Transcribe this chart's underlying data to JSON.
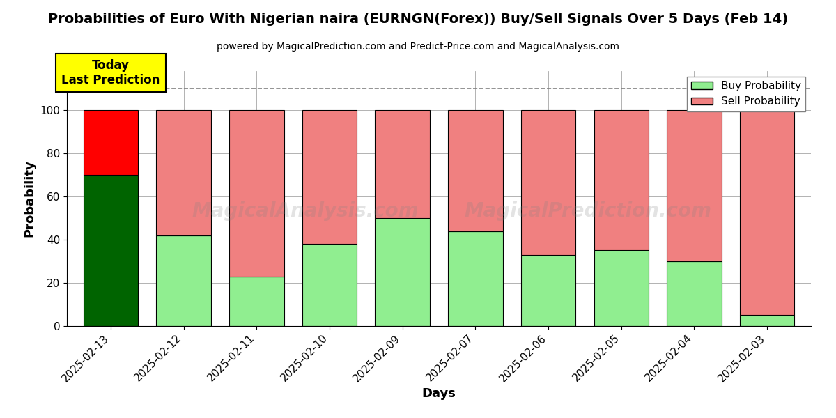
{
  "title": "Probabilities of Euro With Nigerian naira (EURNGN(Forex)) Buy/Sell Signals Over 5 Days (Feb 14)",
  "subtitle": "powered by MagicalPrediction.com and Predict-Price.com and MagicalAnalysis.com",
  "xlabel": "Days",
  "ylabel": "Probability",
  "days": [
    "2025-02-13",
    "2025-02-12",
    "2025-02-11",
    "2025-02-10",
    "2025-02-09",
    "2025-02-07",
    "2025-02-06",
    "2025-02-05",
    "2025-02-04",
    "2025-02-03"
  ],
  "buy_values": [
    70,
    42,
    23,
    38,
    50,
    44,
    33,
    35,
    30,
    5
  ],
  "sell_values": [
    30,
    58,
    77,
    62,
    50,
    56,
    67,
    65,
    70,
    95
  ],
  "today_buy_color": "#006400",
  "today_sell_color": "#FF0000",
  "buy_color": "#90EE90",
  "sell_color": "#F08080",
  "today_label_bg": "#FFFF00",
  "today_label_text": "Today\nLast Prediction",
  "dashed_line_y": 110,
  "ylim": [
    0,
    118
  ],
  "yticks": [
    0,
    20,
    40,
    60,
    80,
    100
  ],
  "legend_buy": "Buy Probability",
  "legend_sell": "Sell Probability",
  "bar_width": 0.75
}
